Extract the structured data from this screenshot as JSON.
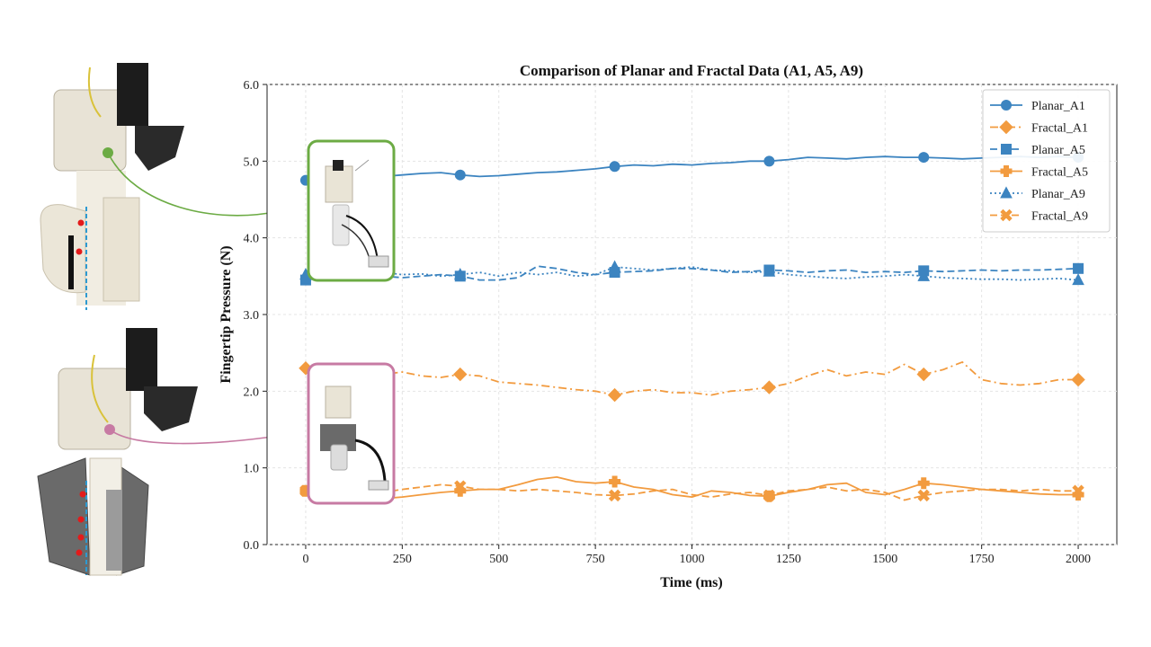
{
  "chart_data": {
    "type": "line",
    "title": "Comparison of Planar and Fractal Data (A1, A5, A9)",
    "xlabel": "Time (ms)",
    "ylabel": "Fingertip Pressure (N)",
    "xlim": [
      -100,
      2100
    ],
    "ylim": [
      0,
      6
    ],
    "xticks": [
      0,
      250,
      500,
      750,
      1000,
      1250,
      1500,
      1750,
      2000
    ],
    "xtick_labels": [
      "0",
      "250",
      "500",
      "750",
      "1000",
      "1250",
      "1500",
      "1750",
      "2000"
    ],
    "yticks": [
      0,
      1,
      2,
      3,
      4,
      5,
      6
    ],
    "ytick_labels": [
      "0.0",
      "1.0",
      "2.0",
      "3.0",
      "4.0",
      "5.0",
      "6.0"
    ],
    "grid": true,
    "legend_position": "top-right",
    "series": [
      {
        "name": "Planar_A1",
        "color": "#3c84c0",
        "linestyle": "solid",
        "marker": "circle",
        "x": [
          0,
          50,
          100,
          150,
          200,
          250,
          300,
          350,
          400,
          450,
          500,
          550,
          600,
          650,
          700,
          750,
          800,
          850,
          900,
          950,
          1000,
          1050,
          1100,
          1150,
          1200,
          1250,
          1300,
          1350,
          1400,
          1450,
          1500,
          1550,
          1600,
          1650,
          1700,
          1750,
          1800,
          1850,
          1900,
          1950,
          2000
        ],
        "y": [
          4.75,
          4.78,
          4.8,
          4.82,
          4.8,
          4.82,
          4.84,
          4.85,
          4.82,
          4.8,
          4.81,
          4.83,
          4.85,
          4.86,
          4.88,
          4.9,
          4.93,
          4.95,
          4.94,
          4.96,
          4.95,
          4.97,
          4.98,
          5.0,
          5.0,
          5.02,
          5.05,
          5.04,
          5.03,
          5.05,
          5.06,
          5.05,
          5.05,
          5.04,
          5.03,
          5.04,
          5.05,
          5.06,
          5.05,
          5.06,
          5.05
        ]
      },
      {
        "name": "Fractal_A1",
        "color": "#f29b3f",
        "linestyle": "dashdot",
        "marker": "diamond",
        "x": [
          0,
          50,
          100,
          150,
          200,
          250,
          300,
          350,
          400,
          450,
          500,
          550,
          600,
          650,
          700,
          750,
          800,
          850,
          900,
          950,
          1000,
          1050,
          1100,
          1150,
          1200,
          1250,
          1300,
          1350,
          1400,
          1450,
          1500,
          1550,
          1600,
          1650,
          1700,
          1750,
          1800,
          1850,
          1900,
          1950,
          2000
        ],
        "y": [
          2.3,
          2.35,
          2.28,
          2.25,
          2.22,
          2.25,
          2.2,
          2.18,
          2.22,
          2.2,
          2.12,
          2.1,
          2.08,
          2.05,
          2.02,
          2.0,
          1.95,
          2.0,
          2.02,
          1.98,
          1.98,
          1.95,
          2.0,
          2.02,
          2.05,
          2.1,
          2.2,
          2.28,
          2.2,
          2.25,
          2.22,
          2.35,
          2.22,
          2.28,
          2.38,
          2.15,
          2.1,
          2.08,
          2.1,
          2.15,
          2.15
        ]
      },
      {
        "name": "Planar_A5",
        "color": "#3c84c0",
        "linestyle": "dashed",
        "marker": "square",
        "x": [
          0,
          50,
          100,
          150,
          200,
          250,
          300,
          350,
          400,
          450,
          500,
          550,
          600,
          650,
          700,
          750,
          800,
          850,
          900,
          950,
          1000,
          1050,
          1100,
          1150,
          1200,
          1250,
          1300,
          1350,
          1400,
          1450,
          1500,
          1550,
          1600,
          1650,
          1700,
          1750,
          1800,
          1850,
          1900,
          1950,
          2000
        ],
        "y": [
          3.45,
          3.48,
          3.5,
          3.52,
          3.5,
          3.48,
          3.5,
          3.52,
          3.5,
          3.45,
          3.45,
          3.48,
          3.63,
          3.6,
          3.55,
          3.52,
          3.55,
          3.56,
          3.57,
          3.6,
          3.6,
          3.58,
          3.55,
          3.56,
          3.58,
          3.57,
          3.55,
          3.57,
          3.58,
          3.55,
          3.56,
          3.55,
          3.57,
          3.56,
          3.57,
          3.58,
          3.57,
          3.58,
          3.58,
          3.59,
          3.6
        ]
      },
      {
        "name": "Fractal_A5",
        "color": "#f29b3f",
        "linestyle": "solid",
        "marker": "plus",
        "x": [
          0,
          50,
          100,
          150,
          200,
          250,
          300,
          350,
          400,
          450,
          500,
          550,
          600,
          650,
          700,
          750,
          800,
          850,
          900,
          950,
          1000,
          1050,
          1100,
          1150,
          1200,
          1250,
          1300,
          1350,
          1400,
          1450,
          1500,
          1550,
          1600,
          1650,
          1700,
          1750,
          1800,
          1850,
          1900,
          1950,
          2000
        ],
        "y": [
          0.7,
          0.62,
          0.6,
          0.55,
          0.6,
          0.62,
          0.65,
          0.68,
          0.7,
          0.72,
          0.72,
          0.78,
          0.85,
          0.88,
          0.82,
          0.8,
          0.82,
          0.75,
          0.72,
          0.65,
          0.62,
          0.7,
          0.68,
          0.64,
          0.63,
          0.68,
          0.72,
          0.78,
          0.8,
          0.68,
          0.65,
          0.72,
          0.8,
          0.78,
          0.75,
          0.72,
          0.7,
          0.68,
          0.66,
          0.65,
          0.65
        ]
      },
      {
        "name": "Planar_A9",
        "color": "#3c84c0",
        "linestyle": "dotted",
        "marker": "triangle",
        "x": [
          0,
          50,
          100,
          150,
          200,
          250,
          300,
          350,
          400,
          450,
          500,
          550,
          600,
          650,
          700,
          750,
          800,
          850,
          900,
          950,
          1000,
          1050,
          1100,
          1150,
          1200,
          1250,
          1300,
          1350,
          1400,
          1450,
          1500,
          1550,
          1600,
          1650,
          1700,
          1750,
          1800,
          1850,
          1900,
          1950,
          2000
        ],
        "y": [
          3.52,
          3.55,
          3.53,
          3.5,
          3.55,
          3.52,
          3.53,
          3.5,
          3.52,
          3.55,
          3.5,
          3.55,
          3.52,
          3.55,
          3.5,
          3.52,
          3.62,
          3.6,
          3.58,
          3.6,
          3.62,
          3.58,
          3.57,
          3.55,
          3.56,
          3.52,
          3.5,
          3.48,
          3.47,
          3.49,
          3.5,
          3.52,
          3.5,
          3.48,
          3.47,
          3.46,
          3.46,
          3.45,
          3.46,
          3.47,
          3.45
        ]
      },
      {
        "name": "Fractal_A9",
        "color": "#f29b3f",
        "linestyle": "dashed",
        "marker": "x",
        "x": [
          0,
          50,
          100,
          150,
          200,
          250,
          300,
          350,
          400,
          450,
          500,
          550,
          600,
          650,
          700,
          750,
          800,
          850,
          900,
          950,
          1000,
          1050,
          1100,
          1150,
          1200,
          1250,
          1300,
          1350,
          1400,
          1450,
          1500,
          1550,
          1600,
          1650,
          1700,
          1750,
          1800,
          1850,
          1900,
          1950,
          2000
        ],
        "y": [
          0.7,
          0.72,
          0.75,
          0.7,
          0.68,
          0.72,
          0.75,
          0.78,
          0.76,
          0.72,
          0.72,
          0.7,
          0.72,
          0.7,
          0.68,
          0.65,
          0.64,
          0.66,
          0.7,
          0.72,
          0.65,
          0.62,
          0.66,
          0.68,
          0.64,
          0.7,
          0.72,
          0.75,
          0.7,
          0.72,
          0.68,
          0.58,
          0.64,
          0.68,
          0.7,
          0.72,
          0.72,
          0.7,
          0.72,
          0.7,
          0.7
        ]
      }
    ]
  },
  "photos": {
    "top_gripper": {
      "highlight_color": "#6cab44",
      "dot_color": "#e31b1b"
    },
    "bottom_gripper": {
      "highlight_color": "#c77aa3",
      "dot_color": "#e31b1b"
    }
  }
}
